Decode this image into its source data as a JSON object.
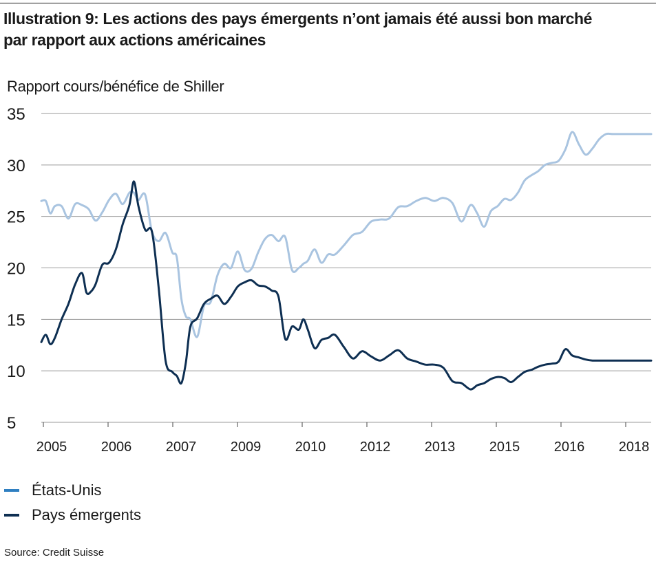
{
  "title_line1": "Illustration 9: Les actions des pays émergents n’ont jamais été aussi bon marché",
  "title_line2": "par rapport aux actions américaines",
  "source": "Source: Credit Suisse",
  "colors": {
    "us": "#a9c4e0",
    "em": "#0e2f52",
    "grid": "#9a9a9a",
    "legend_us": "#2f7fc1",
    "legend_em": "#0e2f52"
  },
  "chart_data": {
    "type": "line",
    "title": "Illustration 9: Les actions des pays émergents n’ont jamais été aussi bon marché par rapport aux actions américaines",
    "ylabel": "Rapport cours/bénéfice de Shiller",
    "xlabel": "",
    "ylim": [
      5,
      35
    ],
    "yticks": [
      5,
      10,
      15,
      20,
      25,
      30,
      35
    ],
    "xlim": [
      2005,
      2018.5
    ],
    "xtick_labels": [
      "2005",
      "2006",
      "2007",
      "2009",
      "2010",
      "2012",
      "2013",
      "2015",
      "2016",
      "2018"
    ],
    "grid": "horizontal",
    "legend_position": "bottom-left",
    "series": [
      {
        "name": "États-Unis",
        "x": [
          2005.0,
          2005.1,
          2005.2,
          2005.3,
          2005.45,
          2005.6,
          2005.75,
          2005.9,
          2006.05,
          2006.2,
          2006.35,
          2006.5,
          2006.65,
          2006.8,
          2006.95,
          2007.05,
          2007.15,
          2007.3,
          2007.45,
          2007.6,
          2007.75,
          2007.9,
          2008.0,
          2008.1,
          2008.2,
          2008.3,
          2008.45,
          2008.6,
          2008.75,
          2008.9,
          2009.05,
          2009.2,
          2009.35,
          2009.5,
          2009.65,
          2009.8,
          2009.95,
          2010.1,
          2010.25,
          2010.4,
          2010.55,
          2010.7,
          2010.8,
          2010.9,
          2011.05,
          2011.2,
          2011.35,
          2011.5,
          2011.7,
          2011.9,
          2012.1,
          2012.3,
          2012.5,
          2012.7,
          2012.9,
          2013.1,
          2013.3,
          2013.5,
          2013.7,
          2013.9,
          2014.1,
          2014.3,
          2014.5,
          2014.65,
          2014.8,
          2014.95,
          2015.1,
          2015.25,
          2015.4,
          2015.55,
          2015.7,
          2015.85,
          2016.0,
          2016.15,
          2016.3,
          2016.45,
          2016.6,
          2016.75,
          2016.9,
          2017.05,
          2017.2,
          2017.35,
          2017.5,
          2017.65,
          2017.8,
          2017.95,
          2018.1,
          2018.25,
          2018.4,
          2018.5
        ],
        "values": [
          26.5,
          26.5,
          25.3,
          26.0,
          26.0,
          24.8,
          26.2,
          26.1,
          25.7,
          24.6,
          25.4,
          26.6,
          27.2,
          26.2,
          27.3,
          27.3,
          26.6,
          27.1,
          23.5,
          22.6,
          23.4,
          21.5,
          21.0,
          17.0,
          15.3,
          15.0,
          13.3,
          16.3,
          16.7,
          19.3,
          20.4,
          20.0,
          21.6,
          19.8,
          19.9,
          21.5,
          22.8,
          23.2,
          22.6,
          23.0,
          19.8,
          20.0,
          20.4,
          20.7,
          21.8,
          20.5,
          21.3,
          21.3,
          22.2,
          23.2,
          23.5,
          24.5,
          24.7,
          24.8,
          25.9,
          26.0,
          26.5,
          26.8,
          26.5,
          26.8,
          26.3,
          24.5,
          26.1,
          25.3,
          24.0,
          25.5,
          26.0,
          26.7,
          26.6,
          27.3,
          28.5,
          29.0,
          29.4,
          30.0,
          30.2,
          30.4,
          31.5,
          33.2,
          32.0,
          31.0,
          31.6,
          32.5,
          33.0,
          33.0,
          33.0,
          33.0,
          33.0,
          33.0,
          33.0,
          33.0
        ]
      },
      {
        "name": "Pays émergents",
        "x": [
          2005.0,
          2005.1,
          2005.2,
          2005.3,
          2005.45,
          2005.6,
          2005.75,
          2005.9,
          2006.0,
          2006.1,
          2006.2,
          2006.35,
          2006.5,
          2006.65,
          2006.8,
          2006.95,
          2007.05,
          2007.15,
          2007.3,
          2007.45,
          2007.6,
          2007.75,
          2007.9,
          2008.0,
          2008.1,
          2008.2,
          2008.3,
          2008.45,
          2008.6,
          2008.75,
          2008.9,
          2009.05,
          2009.2,
          2009.35,
          2009.5,
          2009.65,
          2009.8,
          2009.95,
          2010.1,
          2010.25,
          2010.4,
          2010.55,
          2010.7,
          2010.8,
          2010.9,
          2011.05,
          2011.2,
          2011.35,
          2011.5,
          2011.7,
          2011.9,
          2012.1,
          2012.3,
          2012.5,
          2012.7,
          2012.9,
          2013.1,
          2013.3,
          2013.5,
          2013.7,
          2013.9,
          2014.1,
          2014.3,
          2014.5,
          2014.65,
          2014.8,
          2014.95,
          2015.1,
          2015.25,
          2015.4,
          2015.55,
          2015.7,
          2015.85,
          2016.0,
          2016.15,
          2016.3,
          2016.45,
          2016.6,
          2016.75,
          2016.9,
          2017.05,
          2017.2,
          2017.35,
          2017.5,
          2017.65,
          2017.8,
          2017.95,
          2018.1,
          2018.25,
          2018.4,
          2018.5
        ],
        "values": [
          12.8,
          13.5,
          12.6,
          13.2,
          15.0,
          16.5,
          18.4,
          19.5,
          17.6,
          17.7,
          18.4,
          20.3,
          20.5,
          21.8,
          24.2,
          26.1,
          28.4,
          26.0,
          23.7,
          23.5,
          18.0,
          11.0,
          9.9,
          9.5,
          8.8,
          10.8,
          14.3,
          15.1,
          16.5,
          17.0,
          17.3,
          16.5,
          17.2,
          18.2,
          18.6,
          18.8,
          18.3,
          18.2,
          17.8,
          17.2,
          13.1,
          14.3,
          14.0,
          15.0,
          14.0,
          12.2,
          13.0,
          13.2,
          13.5,
          12.3,
          11.2,
          11.9,
          11.4,
          11.0,
          11.5,
          12.0,
          11.2,
          10.9,
          10.6,
          10.6,
          10.3,
          9.0,
          8.8,
          8.2,
          8.6,
          8.8,
          9.2,
          9.4,
          9.3,
          8.9,
          9.4,
          9.9,
          10.1,
          10.4,
          10.6,
          10.7,
          10.9,
          12.1,
          11.5,
          11.3,
          11.1,
          11.0,
          11.0,
          11.0,
          11.0,
          11.0,
          11.0,
          11.0,
          11.0,
          11.0,
          11.0
        ]
      }
    ]
  }
}
